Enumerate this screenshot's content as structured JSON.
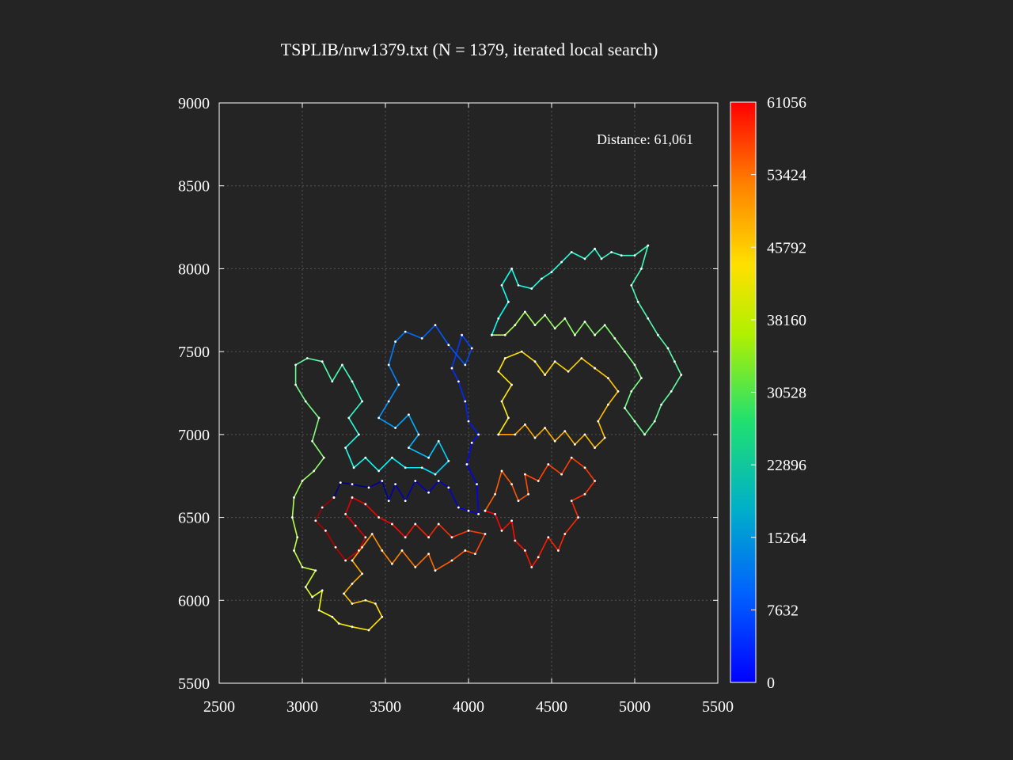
{
  "chart_data": {
    "type": "line",
    "title": "TSPLIB/nrw1379.txt (N = 1379, iterated local search)",
    "annotation": "Distance: 61,061",
    "xlim": [
      2500,
      5500
    ],
    "ylim": [
      5500,
      9000
    ],
    "x_ticks": [
      "2500",
      "3000",
      "3500",
      "4000",
      "4500",
      "5000",
      "5500"
    ],
    "y_ticks": [
      "5500",
      "6000",
      "6500",
      "7000",
      "7500",
      "8000",
      "8500",
      "9000"
    ],
    "grid": true,
    "colorbar": {
      "min": 0,
      "max": 61056,
      "ticks": [
        "0",
        "7632",
        "15264",
        "22896",
        "30528",
        "38160",
        "45792",
        "53424",
        "61056"
      ],
      "colormap": "jet"
    },
    "background_color": "#242424",
    "tour_node_color": "#ffffff",
    "tour_route": [
      [
        3190,
        6620
      ],
      [
        3230,
        6710
      ],
      [
        3300,
        6700
      ],
      [
        3400,
        6680
      ],
      [
        3480,
        6720
      ],
      [
        3520,
        6600
      ],
      [
        3560,
        6700
      ],
      [
        3620,
        6600
      ],
      [
        3680,
        6720
      ],
      [
        3760,
        6650
      ],
      [
        3820,
        6720
      ],
      [
        3880,
        6680
      ],
      [
        3940,
        6560
      ],
      [
        4000,
        6540
      ],
      [
        4060,
        6520
      ],
      [
        4050,
        6700
      ],
      [
        3990,
        6820
      ],
      [
        4020,
        6950
      ],
      [
        4060,
        7000
      ],
      [
        4000,
        7080
      ],
      [
        3980,
        7200
      ],
      [
        3940,
        7320
      ],
      [
        3900,
        7400
      ],
      [
        3960,
        7600
      ],
      [
        4020,
        7520
      ],
      [
        3980,
        7420
      ],
      [
        3880,
        7540
      ],
      [
        3800,
        7660
      ],
      [
        3720,
        7580
      ],
      [
        3620,
        7620
      ],
      [
        3560,
        7560
      ],
      [
        3520,
        7420
      ],
      [
        3580,
        7300
      ],
      [
        3520,
        7200
      ],
      [
        3460,
        7100
      ],
      [
        3560,
        7040
      ],
      [
        3640,
        7120
      ],
      [
        3700,
        7000
      ],
      [
        3640,
        6920
      ],
      [
        3760,
        6860
      ],
      [
        3820,
        6960
      ],
      [
        3880,
        6840
      ],
      [
        3800,
        6760
      ],
      [
        3720,
        6800
      ],
      [
        3620,
        6800
      ],
      [
        3540,
        6860
      ],
      [
        3460,
        6780
      ],
      [
        3380,
        6860
      ],
      [
        3310,
        6800
      ],
      [
        3260,
        6920
      ],
      [
        3340,
        7000
      ],
      [
        3280,
        7100
      ],
      [
        3360,
        7200
      ],
      [
        3300,
        7320
      ],
      [
        3240,
        7420
      ],
      [
        3180,
        7320
      ],
      [
        3120,
        7440
      ],
      [
        3030,
        7460
      ],
      [
        2960,
        7420
      ],
      [
        2960,
        7300
      ],
      [
        3020,
        7200
      ],
      [
        3100,
        7100
      ],
      [
        3060,
        6960
      ],
      [
        3130,
        6860
      ],
      [
        3070,
        6780
      ],
      [
        3000,
        6720
      ],
      [
        2950,
        6620
      ],
      [
        2940,
        6500
      ],
      [
        2970,
        6380
      ],
      [
        2950,
        6300
      ],
      [
        3000,
        6200
      ],
      [
        3080,
        6180
      ],
      [
        3020,
        6080
      ],
      [
        3060,
        6020
      ],
      [
        3120,
        6060
      ],
      [
        3100,
        5940
      ],
      [
        3180,
        5900
      ],
      [
        3220,
        5860
      ],
      [
        3300,
        5840
      ],
      [
        3400,
        5820
      ],
      [
        3480,
        5900
      ],
      [
        3440,
        5980
      ],
      [
        3380,
        6000
      ],
      [
        3300,
        5980
      ],
      [
        3250,
        6040
      ],
      [
        3300,
        6100
      ],
      [
        3360,
        6160
      ],
      [
        3300,
        6240
      ],
      [
        3360,
        6320
      ],
      [
        3420,
        6400
      ],
      [
        3480,
        6300
      ],
      [
        3540,
        6220
      ],
      [
        3600,
        6300
      ],
      [
        3680,
        6200
      ],
      [
        3760,
        6280
      ],
      [
        3800,
        6180
      ],
      [
        3900,
        6240
      ],
      [
        3980,
        6300
      ],
      [
        4040,
        6280
      ],
      [
        4100,
        6400
      ],
      [
        4000,
        6420
      ],
      [
        3900,
        6380
      ],
      [
        3820,
        6460
      ],
      [
        3760,
        6380
      ],
      [
        3680,
        6460
      ],
      [
        3620,
        6380
      ],
      [
        3540,
        6460
      ],
      [
        3460,
        6500
      ],
      [
        3380,
        6580
      ],
      [
        3300,
        6620
      ],
      [
        3260,
        6520
      ],
      [
        3320,
        6450
      ],
      [
        3380,
        6380
      ],
      [
        3340,
        6300
      ],
      [
        3260,
        6240
      ],
      [
        3200,
        6320
      ],
      [
        3140,
        6420
      ],
      [
        3080,
        6480
      ],
      [
        3120,
        6560
      ],
      [
        3190,
        6620
      ]
    ],
    "tour_route_2": [
      [
        4100,
        6540
      ],
      [
        4160,
        6640
      ],
      [
        4200,
        6780
      ],
      [
        4260,
        6700
      ],
      [
        4300,
        6600
      ],
      [
        4360,
        6640
      ],
      [
        4340,
        6760
      ],
      [
        4420,
        6720
      ],
      [
        4480,
        6820
      ],
      [
        4560,
        6760
      ],
      [
        4620,
        6860
      ],
      [
        4700,
        6800
      ],
      [
        4760,
        6720
      ],
      [
        4700,
        6640
      ],
      [
        4620,
        6600
      ],
      [
        4660,
        6500
      ],
      [
        4580,
        6400
      ],
      [
        4540,
        6300
      ],
      [
        4480,
        6380
      ],
      [
        4420,
        6260
      ],
      [
        4380,
        6200
      ],
      [
        4340,
        6300
      ],
      [
        4280,
        6360
      ],
      [
        4260,
        6480
      ],
      [
        4200,
        6420
      ],
      [
        4160,
        6520
      ],
      [
        4100,
        6540
      ]
    ],
    "tour_route_3": [
      [
        4180,
        7000
      ],
      [
        4240,
        7100
      ],
      [
        4200,
        7200
      ],
      [
        4260,
        7300
      ],
      [
        4180,
        7380
      ],
      [
        4220,
        7460
      ],
      [
        4320,
        7500
      ],
      [
        4400,
        7440
      ],
      [
        4460,
        7360
      ],
      [
        4520,
        7440
      ],
      [
        4600,
        7380
      ],
      [
        4680,
        7460
      ],
      [
        4760,
        7400
      ],
      [
        4840,
        7340
      ],
      [
        4900,
        7260
      ],
      [
        4840,
        7180
      ],
      [
        4780,
        7080
      ],
      [
        4820,
        6980
      ],
      [
        4760,
        6920
      ],
      [
        4700,
        7000
      ],
      [
        4640,
        6940
      ],
      [
        4580,
        7020
      ],
      [
        4520,
        6960
      ],
      [
        4460,
        7040
      ],
      [
        4400,
        6980
      ],
      [
        4340,
        7060
      ],
      [
        4280,
        7000
      ],
      [
        4180,
        7000
      ]
    ],
    "tour_route_4": [
      [
        4140,
        7600
      ],
      [
        4180,
        7700
      ],
      [
        4240,
        7800
      ],
      [
        4200,
        7900
      ],
      [
        4260,
        8000
      ],
      [
        4300,
        7900
      ],
      [
        4380,
        7880
      ],
      [
        4440,
        7940
      ],
      [
        4500,
        7980
      ],
      [
        4560,
        8040
      ],
      [
        4620,
        8100
      ],
      [
        4700,
        8060
      ],
      [
        4760,
        8120
      ],
      [
        4800,
        8060
      ],
      [
        4860,
        8100
      ],
      [
        4920,
        8080
      ],
      [
        5000,
        8080
      ],
      [
        5080,
        8140
      ],
      [
        5040,
        8000
      ],
      [
        4980,
        7900
      ],
      [
        5020,
        7800
      ],
      [
        5080,
        7700
      ],
      [
        5140,
        7600
      ],
      [
        5200,
        7520
      ],
      [
        5240,
        7440
      ],
      [
        5280,
        7360
      ],
      [
        5220,
        7260
      ],
      [
        5160,
        7180
      ],
      [
        5120,
        7080
      ],
      [
        5060,
        7000
      ],
      [
        5000,
        7080
      ],
      [
        4940,
        7160
      ],
      [
        4980,
        7260
      ],
      [
        5040,
        7340
      ],
      [
        5000,
        7420
      ],
      [
        4940,
        7500
      ],
      [
        4880,
        7580
      ],
      [
        4820,
        7660
      ],
      [
        4760,
        7600
      ],
      [
        4700,
        7680
      ],
      [
        4640,
        7600
      ],
      [
        4580,
        7700
      ],
      [
        4520,
        7640
      ],
      [
        4460,
        7720
      ],
      [
        4400,
        7660
      ],
      [
        4340,
        7740
      ],
      [
        4280,
        7660
      ],
      [
        4220,
        7600
      ],
      [
        4140,
        7600
      ]
    ]
  }
}
